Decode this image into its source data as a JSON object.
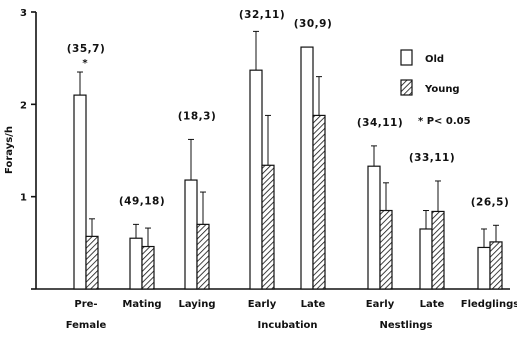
{
  "chart_data": {
    "type": "bar",
    "title": "",
    "xlabel": "",
    "ylabel": "Forays/h",
    "ylim": [
      0,
      3
    ],
    "yticks": [
      "0",
      "1",
      "2",
      "3"
    ],
    "grid": false,
    "legend_position": "right",
    "categories": [
      "Pre-Female",
      "Mating",
      "Laying",
      "Early",
      "Late",
      "Early",
      "Late",
      "Fledglings"
    ],
    "category_label_lines": [
      [
        "Pre-",
        "Female"
      ],
      [
        "Mating"
      ],
      [
        "Laying"
      ],
      [
        "Early"
      ],
      [
        "Late"
      ],
      [
        "Early"
      ],
      [
        "Late"
      ],
      [
        "Fledglings"
      ]
    ],
    "groups": [
      {
        "label": "Incubation",
        "categories": [
          3,
          4
        ]
      },
      {
        "label": "Nestlings",
        "categories": [
          5,
          6
        ]
      }
    ],
    "sample_sizes": [
      "(35,7)",
      "(49,18)",
      "(18,3)",
      "(32,11)",
      "(30,9)",
      "(34,11)",
      "(33,11)",
      "(26,5)"
    ],
    "significance_marks": [
      {
        "category": 0,
        "symbol": "*"
      }
    ],
    "significance_note": "* P< 0.05",
    "series": [
      {
        "name": "Old",
        "fill": "#ffffff",
        "pattern": "none",
        "values": [
          2.1,
          0.55,
          1.18,
          2.37,
          2.62,
          1.33,
          0.65,
          0.45
        ],
        "errors": [
          0.25,
          0.15,
          0.44,
          0.42,
          0.0,
          0.22,
          0.2,
          0.2
        ]
      },
      {
        "name": "Young",
        "fill": "#ffffff",
        "pattern": "diagonal-hatch",
        "values": [
          0.57,
          0.46,
          0.7,
          1.34,
          1.88,
          0.85,
          0.84,
          0.51
        ],
        "errors": [
          0.19,
          0.2,
          0.35,
          0.54,
          0.42,
          0.3,
          0.33,
          0.18
        ]
      }
    ]
  }
}
